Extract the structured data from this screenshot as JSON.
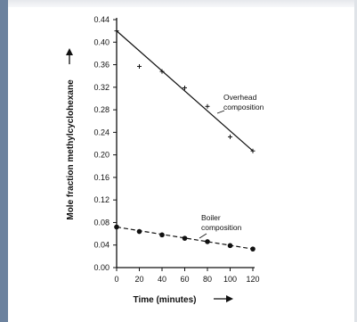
{
  "chart_data": {
    "type": "line",
    "xlabel": "Time (minutes)",
    "ylabel": "Mole fraction methylcyclohexane",
    "xlim": [
      0,
      120
    ],
    "ylim": [
      0,
      0.44
    ],
    "x_ticks": [
      0,
      20,
      40,
      60,
      80,
      100,
      120
    ],
    "y_ticks": [
      "0.00",
      "0.04",
      "0.08",
      "0.12",
      "0.16",
      "0.20",
      "0.24",
      "0.28",
      "0.32",
      "0.36",
      "0.40",
      "0.44"
    ],
    "grid": false,
    "series": [
      {
        "name": "Overhead composition",
        "marker": "plus",
        "line_style": "solid",
        "points": [
          [
            0,
            0.42
          ],
          [
            20,
            0.357
          ],
          [
            40,
            0.348
          ],
          [
            60,
            0.319
          ],
          [
            80,
            0.286
          ],
          [
            100,
            0.232
          ],
          [
            120,
            0.207
          ]
        ],
        "trend": [
          [
            0,
            0.42
          ],
          [
            120,
            0.207
          ]
        ]
      },
      {
        "name": "Boiler composition",
        "marker": "circle",
        "line_style": "dashed",
        "points": [
          [
            0,
            0.072
          ],
          [
            20,
            0.064
          ],
          [
            40,
            0.058
          ],
          [
            60,
            0.052
          ],
          [
            80,
            0.046
          ],
          [
            100,
            0.039
          ],
          [
            120,
            0.033
          ]
        ],
        "trend": [
          [
            0,
            0.072
          ],
          [
            120,
            0.033
          ]
        ]
      }
    ],
    "annotations": [
      {
        "series": "Overhead composition",
        "lines": [
          "Overhead",
          "composition"
        ]
      },
      {
        "series": "Boiler composition",
        "lines": [
          "Boiler",
          "composition"
        ]
      }
    ],
    "colors": {
      "ink": "#111111",
      "frame": "#6c829e"
    }
  }
}
